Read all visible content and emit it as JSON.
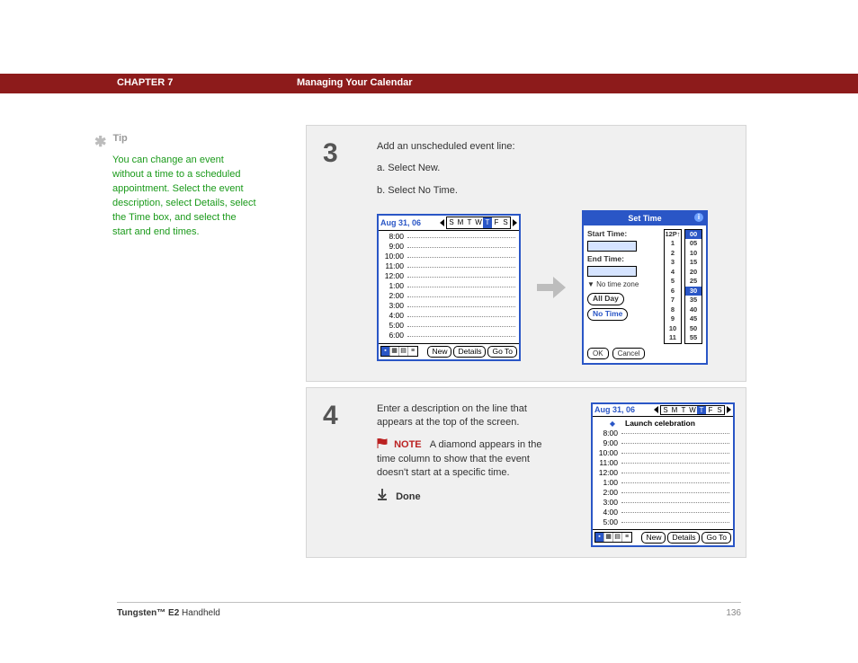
{
  "header": {
    "chapter": "CHAPTER 7",
    "title": "Managing Your Calendar"
  },
  "tip": {
    "label": "Tip",
    "body": "You can change an event without a time to a scheduled appointment. Select the event description, select Details, select the Time box, and select the start and end times."
  },
  "step3": {
    "num": "3",
    "intro": "Add an unscheduled event line:",
    "a": "a.  Select New.",
    "b": "b.  Select No Time.",
    "shot_left": {
      "date": "Aug 31, 06",
      "days": [
        "S",
        "M",
        "T",
        "W",
        "T",
        "F",
        "S"
      ],
      "active_day_index": 4,
      "times": [
        "8:00",
        "9:00",
        "10:00",
        "11:00",
        "12:00",
        "1:00",
        "2:00",
        "3:00",
        "4:00",
        "5:00",
        "6:00"
      ],
      "buttons": [
        "New",
        "Details",
        "Go To"
      ]
    },
    "settime": {
      "title": "Set Time",
      "start_label": "Start Time:",
      "end_label": "End Time:",
      "tz": "▼  No time zone",
      "allday": "All Day",
      "notime": "No Time",
      "hours": [
        "12P↑",
        "1",
        "2",
        "3",
        "4",
        "5",
        "6",
        "7",
        "8",
        "9",
        "10",
        "11"
      ],
      "mins": [
        "▸00",
        "05",
        "10",
        "15",
        "20",
        "25",
        "▸30",
        "35",
        "40",
        "45",
        "50",
        "55"
      ],
      "ok": "OK",
      "cancel": "Cancel"
    }
  },
  "step4": {
    "num": "4",
    "body": "Enter a description on the line that appears at the top of the screen.",
    "note_label": "NOTE",
    "note_body": "A diamond appears in the time column to show that the event doesn't start at a specific time.",
    "done": "Done",
    "shot": {
      "date": "Aug 31, 06",
      "days": [
        "S",
        "M",
        "T",
        "W",
        "T",
        "F",
        "S"
      ],
      "active_day_index": 4,
      "event": "Launch celebration",
      "times": [
        "8:00",
        "9:00",
        "10:00",
        "11:00",
        "12:00",
        "1:00",
        "2:00",
        "3:00",
        "4:00",
        "5:00"
      ],
      "buttons": [
        "New",
        "Details",
        "Go To"
      ]
    }
  },
  "footer": {
    "product_bold": "Tungsten™ E2",
    "product_rest": " Handheld",
    "page": "136"
  },
  "colors": {
    "header_bg": "#8d1b1b",
    "tip_text": "#1a9a1a",
    "palm_accent": "#2a56c6",
    "note_red": "#bb2222",
    "step_bg": "#f0f0f0",
    "arrow_gray": "#bdbdbd"
  }
}
